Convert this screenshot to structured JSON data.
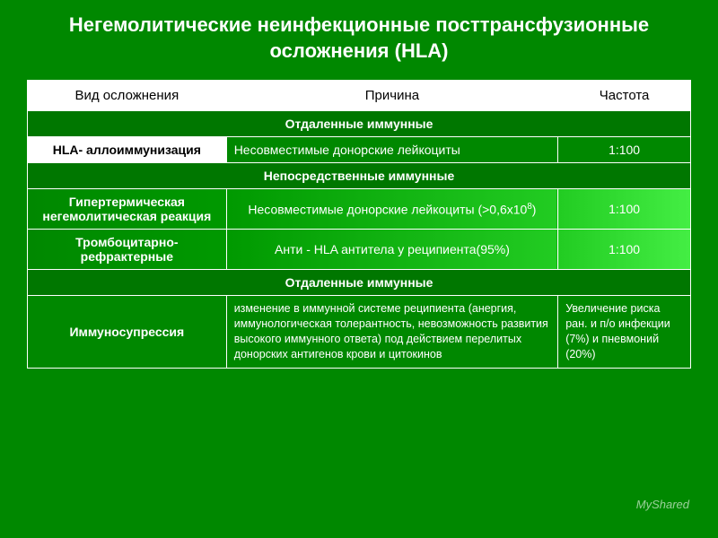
{
  "title": "Негемолитические неинфекционные посттрансфузионные осложнения (HLA)",
  "headers": {
    "type": "Вид осложнения",
    "cause": "Причина",
    "freq": "Частота"
  },
  "section1": "Отдаленные иммунные",
  "row1": {
    "type": "HLA- аллоиммунизация",
    "cause": "Несовместимые донорские лейкоциты",
    "freq": "1:100"
  },
  "section2": "Непосредственные иммунные",
  "row2": {
    "type": "Гипертермическая негемолитическая реакция",
    "cause_pre": "Несовместимые донорские лейкоциты (>0,6х10",
    "cause_sup": "8",
    "cause_post": ")",
    "freq": "1:100"
  },
  "row3": {
    "type": "Тромбоцитарно- рефрактерные",
    "cause": "Анти - HLA антитела у реципиента(95%)",
    "freq": "1:100"
  },
  "section3": "Отдаленные иммунные",
  "row4": {
    "type": "Иммуносупрессия",
    "cause": "изменение в иммунной системе реципиента (анергия, иммунологическая толерантность, невозможность развития высокого иммунного ответа) под действием перелитых донорских антигенов крови и цитокинов",
    "freq": "Увеличение риска ран. и п/о инфекции (7%) и пневмоний (20%)"
  },
  "watermark": "MyShared",
  "colors": {
    "background": "#008800",
    "border": "#ffffff",
    "header_bg": "#ffffff",
    "header_text": "#000000"
  }
}
